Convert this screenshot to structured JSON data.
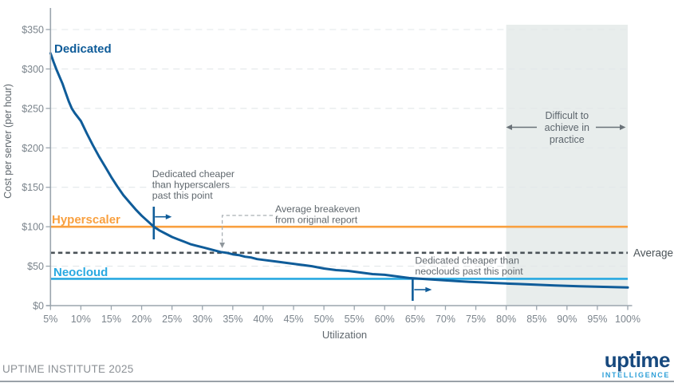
{
  "chart_data": {
    "type": "line",
    "xlabel": "Utilization",
    "ylabel": "Cost per server (per hour)",
    "x_ticks": [
      "5%",
      "10%",
      "15%",
      "20%",
      "25%",
      "30%",
      "35%",
      "40%",
      "45%",
      "50%",
      "55%",
      "60%",
      "65%",
      "70%",
      "75%",
      "80%",
      "85%",
      "90%",
      "95%",
      "100%"
    ],
    "y_ticks": [
      "$0",
      "$50",
      "$100",
      "$150",
      "$200",
      "$250",
      "$300",
      "$350"
    ],
    "x_range": [
      5,
      100
    ],
    "y_range": [
      0,
      375
    ],
    "grid": "dashed-horizontal",
    "series": [
      {
        "name": "Dedicated",
        "type": "curve",
        "color": "#0f5c99",
        "points": [
          [
            5,
            320
          ],
          [
            5.5,
            309
          ],
          [
            6,
            299
          ],
          [
            6.5,
            290
          ],
          [
            7,
            281
          ],
          [
            7.5,
            270
          ],
          [
            8,
            259
          ],
          [
            8.5,
            250
          ],
          [
            9,
            244
          ],
          [
            10,
            234
          ],
          [
            11,
            218
          ],
          [
            12,
            203
          ],
          [
            13,
            189
          ],
          [
            14,
            176
          ],
          [
            15,
            163
          ],
          [
            16,
            151
          ],
          [
            17,
            140
          ],
          [
            18,
            131
          ],
          [
            19,
            122
          ],
          [
            20,
            114
          ],
          [
            21,
            107
          ],
          [
            22,
            100
          ],
          [
            23,
            95
          ],
          [
            24,
            91
          ],
          [
            25,
            87
          ],
          [
            26,
            84
          ],
          [
            27,
            81
          ],
          [
            28,
            78
          ],
          [
            29,
            76
          ],
          [
            30,
            74
          ],
          [
            31,
            72
          ],
          [
            32,
            70
          ],
          [
            33,
            68
          ],
          [
            34,
            67
          ],
          [
            35,
            65
          ],
          [
            36,
            64
          ],
          [
            37,
            62
          ],
          [
            38,
            61
          ],
          [
            39,
            59
          ],
          [
            40,
            58
          ],
          [
            42,
            56
          ],
          [
            44,
            54
          ],
          [
            46,
            52
          ],
          [
            48,
            50
          ],
          [
            50,
            47
          ],
          [
            52,
            45
          ],
          [
            54,
            44
          ],
          [
            56,
            42
          ],
          [
            58,
            40
          ],
          [
            60,
            39
          ],
          [
            62,
            37
          ],
          [
            63,
            36
          ],
          [
            64,
            35
          ],
          [
            65,
            34.5
          ],
          [
            66,
            34
          ],
          [
            68,
            33
          ],
          [
            70,
            32
          ],
          [
            72,
            31
          ],
          [
            74,
            30
          ],
          [
            76,
            29.4
          ],
          [
            78,
            28.7
          ],
          [
            80,
            28
          ],
          [
            82,
            27.4
          ],
          [
            84,
            26.8
          ],
          [
            86,
            26.2
          ],
          [
            88,
            25.6
          ],
          [
            90,
            25
          ],
          [
            92,
            24.6
          ],
          [
            94,
            24.2
          ],
          [
            96,
            23.8
          ],
          [
            98,
            23.4
          ],
          [
            100,
            23
          ]
        ]
      },
      {
        "name": "Hyperscaler",
        "type": "hline",
        "color": "#f9a03f",
        "value": 100
      },
      {
        "name": "Neocloud",
        "type": "hline",
        "color": "#29a9e1",
        "value": 34
      },
      {
        "name": "Average",
        "type": "hline",
        "style": "dashed",
        "color": "#4a5257",
        "value": 67,
        "label_side": "right"
      }
    ],
    "band": {
      "x_from": 80,
      "x_to": 100,
      "color": "#e8edec",
      "label": "Difficult to\nachieve in\npractice",
      "label_color": "#5d666d"
    },
    "annotations": [
      {
        "id": "hyperscaler-breakeven",
        "x": 22,
        "text": "Dedicated cheaper\nthan hyperscalers\npast this point"
      },
      {
        "id": "average-breakeven",
        "x": 33,
        "text": "Average breakeven\nfrom original report"
      },
      {
        "id": "neocloud-breakeven",
        "x": 65,
        "text": "Dedicated cheaper than\nneoclouds past this point"
      }
    ],
    "colors": {
      "grid": "#e2e7e9",
      "axis": "#9ba5ae",
      "tick_text": "#7b848c",
      "annotation_text": "#60686e",
      "connector": "#a9b0b5"
    }
  },
  "footer": {
    "credit": "UPTIME INSTITUTE 2025",
    "logo": {
      "word": "uptime",
      "sub": "INTELLIGENCE"
    }
  }
}
